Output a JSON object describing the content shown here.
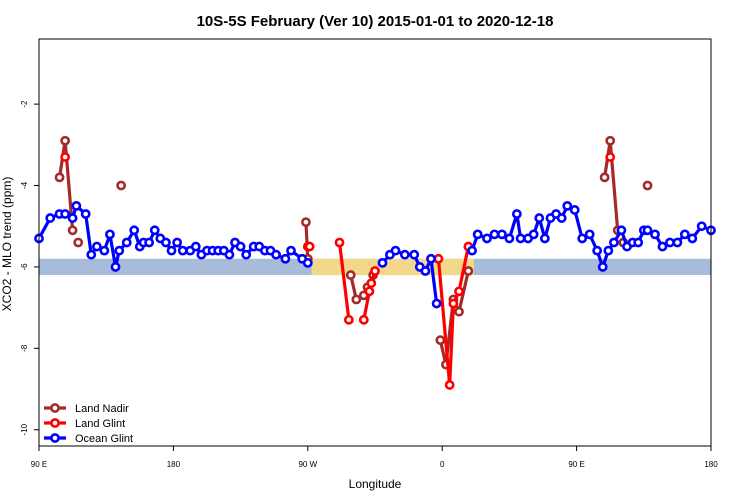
{
  "chart_data": {
    "type": "line",
    "title": "10S-5S February (Ver 10)   2015-01-01 to 2020-12-18",
    "xlabel": "Longitude",
    "ylabel": "XCO2 - MLO trend (ppm)",
    "xlim": [
      90,
      450
    ],
    "ylim": [
      -10.4,
      -0.4
    ],
    "xticks": [
      {
        "value": 90,
        "label": "90 E"
      },
      {
        "value": 162,
        "label": "180"
      },
      {
        "value": 234,
        "label": "90 W"
      },
      {
        "value": 306,
        "label": "0"
      },
      {
        "value": 378,
        "label": "90 E"
      },
      {
        "value": 450,
        "label": "180"
      }
    ],
    "yticks": [
      {
        "value": -2,
        "label": "-2"
      },
      {
        "value": -4,
        "label": "-4"
      },
      {
        "value": -6,
        "label": "-6"
      },
      {
        "value": -8,
        "label": "-8"
      },
      {
        "value": -10,
        "label": "-10"
      }
    ],
    "land_band": {
      "y_range": [
        -6.2,
        -5.8
      ],
      "color": "#a7bcd9",
      "land_color": "#f3d78a",
      "land_segments": [
        [
          236,
          305
        ],
        [
          305,
          323
        ]
      ]
    },
    "legend_position": "bottom-left",
    "series": [
      {
        "name": "Land Nadir",
        "color": "#a52a2a",
        "segments": [
          [
            [
              101,
              -3.8
            ],
            [
              104,
              -2.9
            ],
            [
              108,
              -5.1
            ]
          ],
          [
            [
              111,
              -5.4
            ]
          ],
          [
            [
              134,
              -4.0
            ]
          ],
          [
            [
              233,
              -4.9
            ],
            [
              234,
              -5.8
            ]
          ],
          [
            [
              257,
              -6.2
            ],
            [
              260,
              -6.8
            ],
            [
              264,
              -6.7
            ],
            [
              266,
              -6.5
            ],
            [
              269,
              -6.2
            ]
          ],
          [
            [
              305,
              -7.8
            ],
            [
              308,
              -8.4
            ],
            [
              312,
              -6.8
            ],
            [
              315,
              -7.1
            ],
            [
              320,
              -6.1
            ]
          ],
          [
            [
              393,
              -3.8
            ],
            [
              396,
              -2.9
            ],
            [
              400,
              -5.1
            ]
          ],
          [
            [
              403,
              -5.4
            ]
          ],
          [
            [
              416,
              -4.0
            ]
          ]
        ]
      },
      {
        "name": "Land Glint",
        "color": "#ff0000",
        "segments": [
          [
            [
              104,
              -3.3
            ]
          ],
          [
            [
              234,
              -5.5
            ],
            [
              235,
              -5.5
            ]
          ],
          [
            [
              251,
              -5.4
            ],
            [
              256,
              -7.3
            ]
          ],
          [
            [
              264,
              -7.3
            ],
            [
              267,
              -6.6
            ],
            [
              268,
              -6.4
            ],
            [
              270,
              -6.1
            ]
          ],
          [
            [
              304,
              -5.8
            ],
            [
              310,
              -8.9
            ],
            [
              312,
              -6.9
            ],
            [
              315,
              -6.6
            ],
            [
              320,
              -5.5
            ]
          ],
          [
            [
              396,
              -3.3
            ]
          ]
        ]
      },
      {
        "name": "Ocean Glint",
        "color": "#0000ff",
        "segments": [
          [
            [
              90,
              -5.3
            ],
            [
              96,
              -4.8
            ],
            [
              101,
              -4.7
            ],
            [
              104,
              -4.7
            ],
            [
              108,
              -4.8
            ],
            [
              110,
              -4.5
            ],
            [
              115,
              -4.7
            ],
            [
              118,
              -5.7
            ],
            [
              121,
              -5.5
            ],
            [
              125,
              -5.6
            ],
            [
              128,
              -5.2
            ],
            [
              131,
              -6.0
            ],
            [
              133,
              -5.6
            ],
            [
              137,
              -5.4
            ],
            [
              141,
              -5.1
            ],
            [
              144,
              -5.5
            ],
            [
              146,
              -5.4
            ],
            [
              149,
              -5.4
            ],
            [
              152,
              -5.1
            ],
            [
              155,
              -5.3
            ],
            [
              158,
              -5.4
            ],
            [
              161,
              -5.6
            ],
            [
              164,
              -5.4
            ],
            [
              167,
              -5.6
            ],
            [
              171,
              -5.6
            ],
            [
              174,
              -5.5
            ],
            [
              177,
              -5.7
            ],
            [
              180,
              -5.6
            ],
            [
              183,
              -5.6
            ],
            [
              186,
              -5.6
            ],
            [
              189,
              -5.6
            ],
            [
              192,
              -5.7
            ],
            [
              195,
              -5.4
            ],
            [
              198,
              -5.5
            ],
            [
              201,
              -5.7
            ],
            [
              205,
              -5.5
            ],
            [
              208,
              -5.5
            ],
            [
              211,
              -5.6
            ],
            [
              214,
              -5.6
            ],
            [
              217,
              -5.7
            ],
            [
              222,
              -5.8
            ],
            [
              225,
              -5.6
            ],
            [
              231,
              -5.8
            ],
            [
              234,
              -5.9
            ]
          ],
          [
            [
              274,
              -5.9
            ],
            [
              278,
              -5.7
            ],
            [
              281,
              -5.6
            ],
            [
              286,
              -5.7
            ],
            [
              291,
              -5.7
            ],
            [
              294,
              -6.0
            ],
            [
              297,
              -6.1
            ],
            [
              300,
              -5.8
            ],
            [
              303,
              -6.9
            ]
          ],
          [
            [
              322,
              -5.6
            ],
            [
              325,
              -5.2
            ],
            [
              330,
              -5.3
            ],
            [
              334,
              -5.2
            ],
            [
              338,
              -5.2
            ],
            [
              342,
              -5.3
            ],
            [
              346,
              -4.7
            ],
            [
              348,
              -5.3
            ],
            [
              352,
              -5.3
            ],
            [
              355,
              -5.2
            ],
            [
              358,
              -4.8
            ],
            [
              361,
              -5.3
            ],
            [
              364,
              -4.8
            ],
            [
              367,
              -4.7
            ],
            [
              370,
              -4.8
            ],
            [
              373,
              -4.5
            ],
            [
              377,
              -4.6
            ],
            [
              381,
              -5.3
            ],
            [
              385,
              -5.2
            ],
            [
              389,
              -5.6
            ],
            [
              392,
              -6.0
            ],
            [
              395,
              -5.6
            ],
            [
              398,
              -5.4
            ],
            [
              402,
              -5.1
            ],
            [
              405,
              -5.5
            ],
            [
              408,
              -5.4
            ],
            [
              411,
              -5.4
            ],
            [
              414,
              -5.1
            ],
            [
              416,
              -5.1
            ],
            [
              420,
              -5.2
            ],
            [
              424,
              -5.5
            ],
            [
              428,
              -5.4
            ],
            [
              432,
              -5.4
            ],
            [
              436,
              -5.2
            ],
            [
              440,
              -5.3
            ],
            [
              445,
              -5.0
            ],
            [
              450,
              -5.1
            ]
          ]
        ]
      }
    ]
  }
}
